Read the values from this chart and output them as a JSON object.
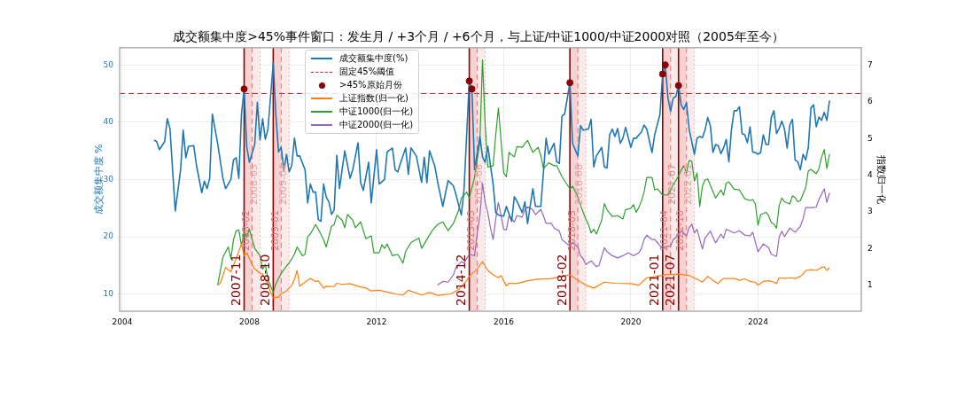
{
  "chart_data": {
    "type": "line",
    "title": "成交额集中度>45%事件窗口：发生月 / +3个月 / +6个月，与上证/中证1000/中证2000对照（2005年至今）",
    "ylabel": "成交额集中度 %",
    "y2label": "指数归一化",
    "xlim": [
      "2003-12",
      "2027-04"
    ],
    "xticks": [
      "2004",
      "2008",
      "2012",
      "2016",
      "2020",
      "2024"
    ],
    "ylim": [
      7.0,
      53.0
    ],
    "yticks": [
      10,
      20,
      30,
      40,
      50
    ],
    "y2lim": [
      0.3,
      7.47
    ],
    "y2ticks": [
      1,
      2,
      3,
      4,
      5,
      6,
      7
    ],
    "grid": true,
    "legend": "top",
    "annotations": [
      {
        "text": "2021-07",
        "x": "2021-07"
      }
    ],
    "series": [
      {
        "name": "成交额集中度(%)",
        "axis": "y",
        "color": "#1f77b4",
        "x": [
          "2005-01",
          "2005-02",
          "2005-03",
          "2005-05",
          "2005-06",
          "2005-07",
          "2005-09",
          "2005-11",
          "2005-12",
          "2006-01",
          "2006-02",
          "2006-04",
          "2006-05",
          "2006-07",
          "2006-08",
          "2006-09",
          "2006-10",
          "2006-11",
          "2007-01",
          "2007-03",
          "2007-04",
          "2007-06",
          "2007-07",
          "2007-08",
          "2007-09",
          "2007-10",
          "2007-11",
          "2007-12",
          "2008-01",
          "2008-03",
          "2008-04",
          "2008-05",
          "2008-06",
          "2008-07",
          "2008-08",
          "2008-10",
          "2008-11",
          "2008-12",
          "2009-01",
          "2009-02",
          "2009-03",
          "2009-04",
          "2009-05",
          "2009-06",
          "2009-07",
          "2009-08",
          "2009-10",
          "2009-11",
          "2009-12",
          "2010-01",
          "2010-02",
          "2010-03",
          "2010-04",
          "2010-05",
          "2010-06",
          "2010-07",
          "2010-08",
          "2010-09",
          "2010-10",
          "2010-11",
          "2011-01",
          "2011-03",
          "2011-04",
          "2011-06",
          "2011-07",
          "2011-08",
          "2011-10",
          "2011-11",
          "2012-01",
          "2012-02",
          "2012-04",
          "2012-05",
          "2012-07",
          "2012-08",
          "2012-09",
          "2012-10",
          "2012-12",
          "2013-01",
          "2013-02",
          "2013-04",
          "2013-06",
          "2013-07",
          "2013-08",
          "2013-09",
          "2013-11",
          "2013-12",
          "2014-02",
          "2014-04",
          "2014-06",
          "2014-07",
          "2014-09",
          "2014-10",
          "2014-12",
          "2015-01",
          "2015-02",
          "2015-04",
          "2015-05",
          "2015-06",
          "2015-07",
          "2015-09",
          "2015-10",
          "2015-11",
          "2016-01",
          "2016-02",
          "2016-04",
          "2016-05",
          "2016-06",
          "2016-08",
          "2016-09",
          "2016-10",
          "2016-12",
          "2017-01",
          "2017-03",
          "2017-05",
          "2017-06",
          "2017-08",
          "2017-09",
          "2017-10",
          "2017-11",
          "2017-12",
          "2018-02",
          "2018-03",
          "2018-05",
          "2018-06",
          "2018-07",
          "2018-09",
          "2018-10",
          "2018-11",
          "2018-12",
          "2019-02",
          "2019-03",
          "2019-04",
          "2019-05",
          "2019-06",
          "2019-07",
          "2019-08",
          "2019-09",
          "2019-10",
          "2019-11",
          "2020-01",
          "2020-02",
          "2020-03",
          "2020-05",
          "2020-06",
          "2020-07",
          "2020-09",
          "2020-10",
          "2020-12",
          "2021-01",
          "2021-02",
          "2021-03",
          "2021-04",
          "2021-05",
          "2021-06",
          "2021-07",
          "2021-08",
          "2021-09",
          "2021-10",
          "2021-11",
          "2022-01",
          "2022-02",
          "2022-03",
          "2022-04",
          "2022-05",
          "2022-06",
          "2022-07",
          "2022-08",
          "2022-09",
          "2022-10",
          "2022-11",
          "2022-12",
          "2023-01",
          "2023-02",
          "2023-03",
          "2023-04",
          "2023-05",
          "2023-06",
          "2023-07",
          "2023-08",
          "2023-09",
          "2023-10",
          "2023-11",
          "2023-12",
          "2024-01",
          "2024-02",
          "2024-03",
          "2024-04",
          "2024-05",
          "2024-06",
          "2024-07",
          "2024-08",
          "2024-09",
          "2024-10",
          "2024-11",
          "2024-12",
          "2025-01",
          "2025-02",
          "2025-03",
          "2025-04",
          "2025-05",
          "2025-06",
          "2025-07",
          "2025-08",
          "2025-09",
          "2025-10",
          "2025-11",
          "2025-12",
          "2026-01",
          "2026-02",
          "2026-03",
          "2026-04"
        ],
        "values": [
          36.9,
          36.6,
          35.2,
          36.6,
          40.6,
          38.9,
          24.5,
          31.6,
          38.6,
          33.8,
          35.8,
          35.9,
          32.5,
          27.7,
          29.7,
          28.4,
          30.2,
          41.4,
          36.3,
          30.2,
          28.4,
          30.0,
          33.4,
          33.8,
          30.2,
          41.4,
          45.8,
          35.7,
          33.0,
          36.1,
          43.5,
          36.9,
          40.6,
          37.0,
          38.8,
          50.3,
          41.1,
          34.8,
          35.6,
          31.6,
          34.4,
          31.3,
          32.5,
          37.2,
          34.1,
          34.1,
          31.7,
          25.9,
          29.2,
          27.8,
          27.8,
          23.0,
          22.7,
          29.2,
          26.9,
          26.1,
          23.9,
          24.7,
          34.2,
          28.4,
          35.0,
          30.2,
          31.7,
          36.4,
          29.4,
          28.1,
          33.0,
          25.9,
          35.2,
          29.2,
          30.0,
          34.8,
          35.5,
          31.7,
          31.3,
          32.8,
          35.5,
          30.9,
          35.5,
          34.1,
          29.5,
          33.9,
          29.4,
          35.0,
          32.3,
          29.7,
          25.3,
          29.8,
          28.9,
          27.3,
          23.8,
          28.1,
          47.2,
          45.8,
          31.7,
          37.5,
          33.9,
          33.0,
          35.8,
          29.2,
          24.2,
          23.8,
          23.6,
          25.3,
          22.7,
          27.0,
          26.2,
          24.2,
          26.1,
          22.3,
          28.4,
          25.3,
          25.3,
          37.2,
          34.4,
          36.3,
          33.1,
          32.8,
          41.1,
          41.4,
          46.9,
          36.3,
          34.1,
          39.4,
          38.6,
          38.8,
          40.5,
          32.2,
          34.1,
          35.6,
          32.2,
          32.0,
          37.8,
          38.8,
          37.5,
          38.9,
          36.3,
          37.2,
          39.1,
          35.6,
          37.2,
          37.2,
          38.3,
          39.5,
          38.8,
          34.7,
          37.8,
          41.4,
          48.4,
          50.0,
          44.2,
          41.9,
          44.2,
          44.5,
          46.4,
          43.0,
          42.2,
          43.4,
          38.8,
          34.4,
          37.2,
          37.5,
          37.3,
          38.6,
          40.8,
          39.4,
          34.7,
          36.1,
          35.9,
          34.5,
          35.5,
          37.0,
          33.1,
          38.8,
          42.0,
          42.0,
          42.7,
          38.0,
          37.8,
          36.4,
          39.2,
          34.8,
          34.7,
          34.4,
          34.7,
          37.8,
          36.1,
          36.1,
          40.8,
          42.0,
          38.0,
          38.9,
          40.2,
          38.8,
          35.5,
          39.5,
          40.5,
          33.4,
          33.1,
          31.7,
          34.4,
          33.4,
          35.6,
          42.5,
          43.0,
          39.2,
          40.9,
          40.3,
          41.7,
          40.3,
          43.8
        ]
      },
      {
        "name": ">45%原始月份",
        "type": "scatter",
        "axis": "y",
        "color": "#8b0000",
        "marker": "circle",
        "x": [
          "2007-11",
          "2014-12",
          "2015-01",
          "2018-02",
          "2021-01",
          "2021-02",
          "2021-07"
        ],
        "values": [
          45.8,
          47.2,
          45.8,
          46.9,
          48.4,
          50.0,
          46.4
        ]
      },
      {
        "name": "上证指数(归一化)",
        "axis": "y2",
        "color": "#ff7f0e",
        "x": [
          "2007-01",
          "2007-02",
          "2007-04",
          "2007-06",
          "2007-08",
          "2007-10",
          "2007-11",
          "2007-12",
          "2008-02",
          "2008-03",
          "2008-05",
          "2008-06",
          "2008-08",
          "2008-09",
          "2008-10",
          "2008-12",
          "2009-01",
          "2009-03",
          "2009-05",
          "2009-06",
          "2009-07",
          "2009-08",
          "2009-10",
          "2009-12",
          "2010-02",
          "2010-03",
          "2010-05",
          "2010-06",
          "2010-09",
          "2010-10",
          "2010-12",
          "2011-03",
          "2011-06",
          "2011-09",
          "2011-11",
          "2012-02",
          "2012-05",
          "2012-08",
          "2012-11",
          "2013-01",
          "2013-06",
          "2013-09",
          "2013-12",
          "2014-05",
          "2014-08",
          "2014-11",
          "2014-12",
          "2015-03",
          "2015-05",
          "2015-07",
          "2015-09",
          "2015-11",
          "2015-12",
          "2016-02",
          "2016-03",
          "2016-06",
          "2016-10",
          "2017-02",
          "2017-07",
          "2017-11",
          "2018-02",
          "2018-05",
          "2018-08",
          "2018-11",
          "2019-03",
          "2019-07",
          "2020-01",
          "2020-04",
          "2020-07",
          "2020-11",
          "2021-02",
          "2021-07",
          "2021-11",
          "2022-02",
          "2022-04",
          "2022-06",
          "2022-08",
          "2022-10",
          "2022-11",
          "2022-12",
          "2023-04",
          "2023-06",
          "2023-08",
          "2023-10",
          "2023-12",
          "2024-01",
          "2024-03",
          "2024-05",
          "2024-07",
          "2024-08",
          "2024-09",
          "2024-11",
          "2025-01",
          "2025-03",
          "2025-05",
          "2025-06",
          "2025-07",
          "2025-09",
          "2025-11",
          "2026-01",
          "2026-02",
          "2026-03",
          "2026-04"
        ],
        "values": [
          1.01,
          1.06,
          1.49,
          1.37,
          1.73,
          2.13,
          1.81,
          1.89,
          1.57,
          1.45,
          1.33,
          1.31,
          1.05,
          0.81,
          0.66,
          0.69,
          0.77,
          0.85,
          1.01,
          1.17,
          1.41,
          0.98,
          1.09,
          1.19,
          1.11,
          1.13,
          0.93,
          0.98,
          0.97,
          1.06,
          1.03,
          1.05,
          0.98,
          0.93,
          0.85,
          0.87,
          0.82,
          0.77,
          0.74,
          0.87,
          0.74,
          0.81,
          0.73,
          0.77,
          0.89,
          1.13,
          1.25,
          1.45,
          1.65,
          1.41,
          1.29,
          1.21,
          1.27,
          0.99,
          1.06,
          1.05,
          1.13,
          1.17,
          1.19,
          1.25,
          1.29,
          1.14,
          1.01,
          0.93,
          1.09,
          1.06,
          1.05,
          1.01,
          1.21,
          1.25,
          1.29,
          1.31,
          1.27,
          1.17,
          1.09,
          1.25,
          1.14,
          1.05,
          1.14,
          1.19,
          1.19,
          1.14,
          1.18,
          1.11,
          1.09,
          1.01,
          1.11,
          1.13,
          1.09,
          1.05,
          1.21,
          1.19,
          1.21,
          1.19,
          1.25,
          1.31,
          1.41,
          1.43,
          1.41,
          1.49,
          1.51,
          1.41,
          1.49
        ]
      },
      {
        "name": "中证1000(归一化)",
        "axis": "y2",
        "color": "#2ca02c",
        "x": [
          "2007-01",
          "2007-03",
          "2007-05",
          "2007-06",
          "2007-07",
          "2007-08",
          "2007-09",
          "2007-10",
          "2007-11",
          "2007-12",
          "2008-01",
          "2008-03",
          "2008-05",
          "2008-06",
          "2008-07",
          "2008-08",
          "2008-10",
          "2008-11",
          "2009-01",
          "2009-03",
          "2009-04",
          "2009-06",
          "2009-07",
          "2009-09",
          "2009-10",
          "2009-11",
          "2009-12",
          "2010-02",
          "2010-03",
          "2010-05",
          "2010-06",
          "2010-08",
          "2010-09",
          "2010-10",
          "2010-12",
          "2011-01",
          "2011-02",
          "2011-04",
          "2011-05",
          "2011-07",
          "2011-09",
          "2011-11",
          "2011-12",
          "2012-02",
          "2012-03",
          "2012-04",
          "2012-05",
          "2012-07",
          "2012-09",
          "2012-11",
          "2012-12",
          "2013-02",
          "2013-05",
          "2013-06",
          "2013-08",
          "2013-10",
          "2013-12",
          "2014-02",
          "2014-04",
          "2014-06",
          "2014-08",
          "2014-09",
          "2014-11",
          "2014-12",
          "2015-02",
          "2015-04",
          "2015-05",
          "2015-06",
          "2015-07",
          "2015-09",
          "2015-10",
          "2015-11",
          "2016-01",
          "2016-02",
          "2016-03",
          "2016-05",
          "2016-06",
          "2016-08",
          "2016-09",
          "2016-10",
          "2016-12",
          "2017-02",
          "2017-03",
          "2017-04",
          "2017-06",
          "2017-08",
          "2017-09",
          "2017-11",
          "2018-02",
          "2018-03",
          "2018-05",
          "2018-06",
          "2018-08",
          "2018-09",
          "2018-10",
          "2018-11",
          "2018-12",
          "2019-02",
          "2019-03",
          "2019-04",
          "2019-06",
          "2019-08",
          "2019-10",
          "2019-11",
          "2020-01",
          "2020-02",
          "2020-03",
          "2020-04",
          "2020-05",
          "2020-06",
          "2020-07",
          "2020-09",
          "2020-10",
          "2020-11",
          "2021-01",
          "2021-03",
          "2021-05",
          "2021-07",
          "2021-08",
          "2021-09",
          "2021-10",
          "2021-11",
          "2021-12",
          "2022-01",
          "2022-02",
          "2022-03",
          "2022-04",
          "2022-05",
          "2022-06",
          "2022-09",
          "2022-11",
          "2022-12",
          "2023-01",
          "2023-02",
          "2023-04",
          "2023-06",
          "2023-08",
          "2023-10",
          "2023-11",
          "2023-12",
          "2024-01",
          "2024-02",
          "2024-04",
          "2024-05",
          "2024-06",
          "2024-07",
          "2024-08",
          "2024-09",
          "2024-10",
          "2024-11",
          "2025-01",
          "2025-02",
          "2025-03",
          "2025-04",
          "2025-05",
          "2025-07",
          "2025-08",
          "2025-09",
          "2025-11",
          "2025-12",
          "2026-01",
          "2026-02",
          "2026-03",
          "2026-04"
        ],
        "values": [
          1.01,
          1.77,
          2.05,
          1.73,
          2.25,
          2.49,
          2.51,
          2.09,
          2.45,
          2.33,
          2.53,
          2.01,
          1.81,
          1.45,
          1.57,
          1.17,
          0.81,
          1.05,
          1.33,
          1.53,
          1.61,
          1.85,
          2.05,
          1.81,
          1.85,
          2.33,
          2.4,
          2.66,
          2.53,
          2.25,
          2.05,
          2.61,
          2.66,
          2.91,
          2.78,
          2.57,
          2.93,
          2.78,
          2.57,
          2.73,
          2.27,
          2.35,
          1.89,
          1.89,
          2.11,
          2.01,
          2.13,
          1.81,
          1.85,
          1.61,
          1.93,
          2.17,
          2.29,
          2.01,
          2.25,
          2.49,
          2.66,
          2.73,
          2.49,
          2.69,
          3.05,
          3.38,
          3.54,
          3.38,
          3.94,
          4.9,
          7.14,
          5.39,
          4.22,
          4.26,
          5.1,
          5.83,
          4.06,
          3.96,
          4.62,
          4.5,
          4.78,
          4.76,
          4.86,
          4.95,
          4.62,
          4.76,
          4.54,
          4.18,
          4.34,
          4.26,
          4.26,
          3.96,
          3.63,
          3.7,
          3.42,
          3.18,
          2.81,
          2.66,
          2.43,
          2.53,
          2.4,
          2.78,
          3.23,
          3.06,
          2.88,
          2.9,
          2.81,
          3.06,
          3.1,
          3.2,
          2.99,
          3.12,
          3.3,
          3.54,
          3.94,
          3.94,
          3.6,
          3.63,
          3.46,
          3.47,
          3.74,
          3.98,
          4.14,
          4.26,
          4.06,
          4.4,
          4.38,
          3.84,
          4.06,
          3.15,
          3.7,
          3.87,
          3.9,
          3.38,
          3.6,
          3.46,
          3.78,
          3.82,
          3.62,
          3.6,
          3.36,
          3.31,
          3.34,
          3.22,
          2.64,
          2.93,
          2.99,
          2.9,
          2.72,
          2.67,
          2.56,
          3.18,
          3.38,
          3.28,
          3.22,
          3.44,
          3.39,
          3.28,
          3.31,
          3.66,
          4.12,
          4.16,
          4.04,
          4.18,
          4.49,
          4.7,
          4.18,
          4.58
        ]
      },
      {
        "name": "中证2000(归一化)",
        "axis": "y2",
        "color": "#9467bd",
        "x": [
          "2013-12",
          "2014-02",
          "2014-04",
          "2014-06",
          "2014-07",
          "2014-09",
          "2014-10",
          "2014-12",
          "2015-02",
          "2015-03",
          "2015-04",
          "2015-05",
          "2015-06",
          "2015-07",
          "2015-08",
          "2015-09",
          "2015-10",
          "2015-11",
          "2016-01",
          "2016-02",
          "2016-03",
          "2016-05",
          "2016-06",
          "2016-08",
          "2016-09",
          "2016-10",
          "2016-12",
          "2017-01",
          "2017-03",
          "2017-04",
          "2017-05",
          "2017-07",
          "2017-08",
          "2017-10",
          "2017-11",
          "2018-01",
          "2018-02",
          "2018-03",
          "2018-05",
          "2018-06",
          "2018-07",
          "2018-08",
          "2018-10",
          "2018-12",
          "2019-01",
          "2019-03",
          "2019-04",
          "2019-06",
          "2019-08",
          "2019-10",
          "2019-12",
          "2020-02",
          "2020-04",
          "2020-05",
          "2020-06",
          "2020-07",
          "2020-09",
          "2020-10",
          "2020-11",
          "2021-01",
          "2021-02",
          "2021-04",
          "2021-05",
          "2021-07",
          "2021-08",
          "2021-10",
          "2021-11",
          "2021-12",
          "2022-01",
          "2022-02",
          "2022-04",
          "2022-05",
          "2022-07",
          "2022-09",
          "2022-11",
          "2022-12",
          "2023-01",
          "2023-04",
          "2023-06",
          "2023-08",
          "2023-10",
          "2023-11",
          "2024-01",
          "2024-03",
          "2024-05",
          "2024-06",
          "2024-08",
          "2024-09",
          "2024-10",
          "2024-11",
          "2025-01",
          "2025-03",
          "2025-05",
          "2025-06",
          "2025-07",
          "2025-10",
          "2025-11",
          "2025-12",
          "2026-02",
          "2026-03",
          "2026-04"
        ],
        "values": [
          1.01,
          1.11,
          1.09,
          1.29,
          1.49,
          1.65,
          1.61,
          1.85,
          1.81,
          2.41,
          2.9,
          3.78,
          3.26,
          2.98,
          2.57,
          2.25,
          2.81,
          3.26,
          2.53,
          2.51,
          2.9,
          2.73,
          2.9,
          2.86,
          3.06,
          3.14,
          3.06,
          2.93,
          3.07,
          2.9,
          2.69,
          2.69,
          2.56,
          2.48,
          2.25,
          2.13,
          2.08,
          2.17,
          2.05,
          1.81,
          1.73,
          1.57,
          1.67,
          1.51,
          1.55,
          2.03,
          1.92,
          1.81,
          1.75,
          1.81,
          1.89,
          1.81,
          1.89,
          2.01,
          2.25,
          2.37,
          2.25,
          2.25,
          2.17,
          1.99,
          2.05,
          2.08,
          2.25,
          2.37,
          2.49,
          2.35,
          2.57,
          2.67,
          2.43,
          2.53,
          1.99,
          2.29,
          2.48,
          2.16,
          2.4,
          2.29,
          2.53,
          2.43,
          2.49,
          2.37,
          2.35,
          2.45,
          1.92,
          2.13,
          2.03,
          1.85,
          1.79,
          2.32,
          2.48,
          2.33,
          2.56,
          2.45,
          2.61,
          2.81,
          3.12,
          3.12,
          3.14,
          3.34,
          3.63,
          3.26,
          3.52
        ]
      }
    ],
    "ref_lines": [
      {
        "axis": "y",
        "value": 45,
        "label": "固定45%阈值",
        "color": "#e31a1c",
        "line_style": "dashed"
      },
      {
        "axis": "x",
        "value": "2007-11",
        "label": "2007-11",
        "color": "#8b0000",
        "line_style": "solid"
      },
      {
        "axis": "x",
        "value": "2008-02",
        "label": "2008-02",
        "color": "#d9777a",
        "line_style": "dashed"
      },
      {
        "axis": "x",
        "value": "2008-05",
        "label": "2008-05",
        "color": "#e8a0a0",
        "line_style": "dotted"
      },
      {
        "axis": "x",
        "value": "2008-10",
        "label": "2008-10",
        "color": "#8b0000",
        "line_style": "solid"
      },
      {
        "axis": "x",
        "value": "2009-01",
        "label": "2009-01",
        "color": "#d9777a",
        "line_style": "dashed"
      },
      {
        "axis": "x",
        "value": "2009-04",
        "label": "2009-04",
        "color": "#e8a0a0",
        "line_style": "dotted"
      },
      {
        "axis": "x",
        "value": "2014-12",
        "label": "2014-12",
        "color": "#8b0000",
        "line_style": "solid"
      },
      {
        "axis": "x",
        "value": "2015-03",
        "label": "2015-03",
        "color": "#d9777a",
        "line_style": "dashed"
      },
      {
        "axis": "x",
        "value": "2015-06",
        "label": "2015-06",
        "color": "#e8a0a0",
        "line_style": "dotted"
      },
      {
        "axis": "x",
        "value": "2018-02",
        "label": "2018-02",
        "color": "#8b0000",
        "line_style": "solid"
      },
      {
        "axis": "x",
        "value": "2018-05",
        "label": "2018-05",
        "color": "#d9777a",
        "line_style": "dashed"
      },
      {
        "axis": "x",
        "value": "2018-08",
        "label": "2018-08",
        "color": "#e8a0a0",
        "line_style": "dotted"
      },
      {
        "axis": "x",
        "value": "2021-01",
        "label": "2021-01",
        "color": "#8b0000",
        "line_style": "solid"
      },
      {
        "axis": "x",
        "value": "2021-04",
        "label": "2021-04",
        "color": "#d9777a",
        "line_style": "dashed"
      },
      {
        "axis": "x",
        "value": "2021-07",
        "label": "2021-07",
        "color": "#8b0000",
        "line_style": "solid"
      },
      {
        "axis": "x",
        "value": "2021-10",
        "label": "2021-10",
        "color": "#d9777a",
        "line_style": "dashed"
      },
      {
        "axis": "x",
        "value": "2022-01",
        "label": "2022-01",
        "color": "#e8a0a0",
        "line_style": "dotted"
      }
    ],
    "bands": [
      {
        "axis": "x",
        "from": "2007-11",
        "to": "2008-02",
        "color": "#f6d3d3"
      },
      {
        "axis": "x",
        "from": "2008-02",
        "to": "2008-05",
        "color": "#fbeaea"
      },
      {
        "axis": "x",
        "from": "2008-10",
        "to": "2009-01",
        "color": "#f6d3d3"
      },
      {
        "axis": "x",
        "from": "2009-01",
        "to": "2009-04",
        "color": "#fbeaea"
      },
      {
        "axis": "x",
        "from": "2014-12",
        "to": "2015-03",
        "color": "#f6d3d3"
      },
      {
        "axis": "x",
        "from": "2015-03",
        "to": "2015-06",
        "color": "#fbeaea"
      },
      {
        "axis": "x",
        "from": "2018-02",
        "to": "2018-05",
        "color": "#f6d3d3"
      },
      {
        "axis": "x",
        "from": "2018-05",
        "to": "2018-08",
        "color": "#fbeaea"
      },
      {
        "axis": "x",
        "from": "2021-01",
        "to": "2021-04",
        "color": "#f6d3d3"
      },
      {
        "axis": "x",
        "from": "2021-04",
        "to": "2021-07",
        "color": "#fbeaea"
      },
      {
        "axis": "x",
        "from": "2021-07",
        "to": "2021-10",
        "color": "#f6d3d3"
      },
      {
        "axis": "x",
        "from": "2021-10",
        "to": "2022-01",
        "color": "#fbeaea"
      }
    ]
  }
}
